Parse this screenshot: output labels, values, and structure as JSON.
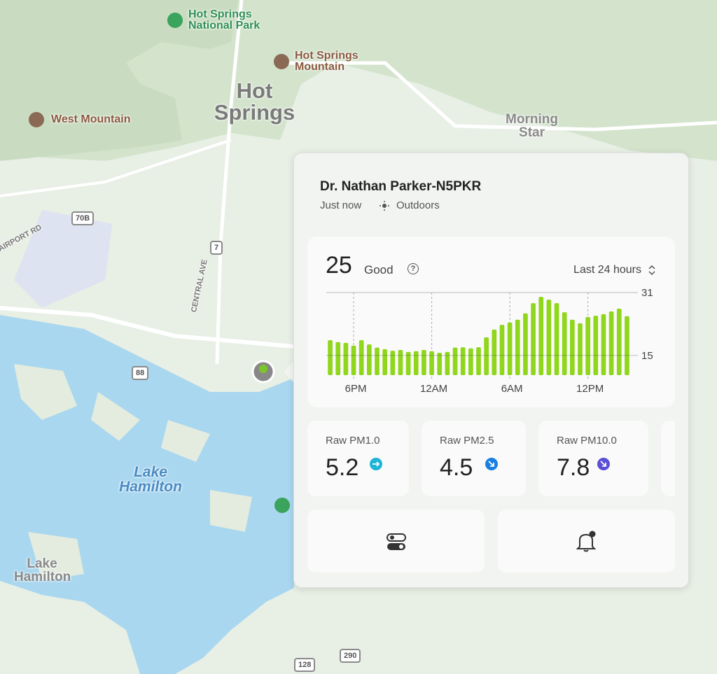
{
  "map": {
    "labels": [
      "Hot Springs National Park",
      "Hot Springs Mountain",
      "Hot Springs",
      "West Mountain",
      "Morning Star",
      "AIRPORT RD",
      "CENTRAL AVE",
      "Lake Hamilton",
      "Lake Hamilton"
    ],
    "shields": [
      "70B",
      "7",
      "88",
      "128",
      "290"
    ]
  },
  "card": {
    "title": "Dr. Nathan Parker-N5PKR",
    "updated": "Just now",
    "location": "Outdoors",
    "aqi_value": 25,
    "aqi_label": "Good",
    "range": "Last 24 hours",
    "readings": [
      {
        "name": "Raw PM1.0",
        "value": 5.2
      },
      {
        "name": "Raw PM2.5",
        "value": 4.5
      },
      {
        "name": "Raw PM10.0",
        "value": 7.8
      }
    ]
  },
  "chart_data": {
    "type": "bar",
    "color": "#8fd61c",
    "categories": [
      null,
      null,
      null,
      "6PM",
      null,
      null,
      null,
      null,
      null,
      null,
      null,
      null,
      null,
      "12AM",
      null,
      null,
      null,
      null,
      null,
      null,
      null,
      null,
      null,
      "6AM",
      null,
      null,
      null,
      null,
      null,
      null,
      null,
      null,
      null,
      "12PM",
      null,
      null,
      null,
      null,
      null
    ],
    "values": [
      18.9,
      18.4,
      18.2,
      17.5,
      18.9,
      17.8,
      17.0,
      16.6,
      16.2,
      16.4,
      15.9,
      16.1,
      16.4,
      16.1,
      15.7,
      15.9,
      17.0,
      17.1,
      16.8,
      17.1,
      19.6,
      21.6,
      22.8,
      23.4,
      24.1,
      25.7,
      28.3,
      29.9,
      29.2,
      28.3,
      26.0,
      24.1,
      23.2,
      24.8,
      25.1,
      25.5,
      26.2,
      26.9,
      25.0
    ],
    "ylim": [
      10,
      31
    ],
    "yticks": [
      15,
      31
    ],
    "grid": true
  }
}
